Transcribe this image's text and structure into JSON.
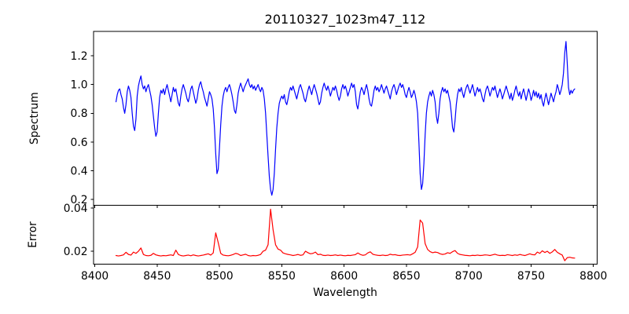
{
  "figure_title": "20110327_1023m47_112",
  "colors": {
    "spectrum_line": "#0000ff",
    "error_line": "#ff0000",
    "axis": "#000000",
    "background": "#ffffff"
  },
  "chart_data": {
    "type": "line",
    "title": "20110327_1023m47_112",
    "xlabel": "Wavelength",
    "grid": false,
    "legend": null,
    "height_ratios": [
      3,
      1
    ],
    "xlim": [
      8399,
      8803
    ],
    "xticks": [
      8400,
      8450,
      8500,
      8550,
      8600,
      8650,
      8700,
      8750,
      8800
    ],
    "xtick_labels": [
      "8400",
      "8450",
      "8500",
      "8550",
      "8600",
      "8650",
      "8700",
      "8750",
      "8800"
    ],
    "panels": [
      {
        "name": "spectrum",
        "ylabel": "Spectrum",
        "color": "#0000ff",
        "ylim": [
          0.16,
          1.37
        ],
        "yticks": [
          0.2,
          0.4,
          0.6,
          0.8,
          1.0,
          1.2
        ],
        "ytick_labels": [
          "0.2",
          "0.4",
          "0.6",
          "0.8",
          "1.0",
          "1.2"
        ],
        "x_start": 8417,
        "x_step": 1,
        "values": [
          0.88,
          0.93,
          0.96,
          0.97,
          0.93,
          0.9,
          0.84,
          0.8,
          0.86,
          0.95,
          0.99,
          0.96,
          0.91,
          0.8,
          0.71,
          0.68,
          0.76,
          0.92,
          0.99,
          1.03,
          1.06,
          1.0,
          0.97,
          0.99,
          0.95,
          0.98,
          1.0,
          0.96,
          0.92,
          0.86,
          0.78,
          0.7,
          0.64,
          0.67,
          0.8,
          0.91,
          0.96,
          0.94,
          0.97,
          0.93,
          0.97,
          1.0,
          0.96,
          0.92,
          0.88,
          0.93,
          0.98,
          0.95,
          0.97,
          0.92,
          0.87,
          0.85,
          0.92,
          0.97,
          1.0,
          0.97,
          0.94,
          0.9,
          0.88,
          0.92,
          0.97,
          0.99,
          0.95,
          0.91,
          0.87,
          0.9,
          0.96,
          1.0,
          1.02,
          0.98,
          0.95,
          0.91,
          0.88,
          0.85,
          0.9,
          0.95,
          0.93,
          0.9,
          0.83,
          0.7,
          0.52,
          0.38,
          0.41,
          0.56,
          0.72,
          0.85,
          0.92,
          0.96,
          0.98,
          0.95,
          0.98,
          1.0,
          0.97,
          0.93,
          0.88,
          0.82,
          0.8,
          0.86,
          0.94,
          0.98,
          1.01,
          0.98,
          0.95,
          0.98,
          1.0,
          1.02,
          1.04,
          1.0,
          0.98,
          1.0,
          0.97,
          0.99,
          0.96,
          0.98,
          1.0,
          0.97,
          0.95,
          0.98,
          0.96,
          0.9,
          0.8,
          0.65,
          0.5,
          0.36,
          0.27,
          0.23,
          0.27,
          0.38,
          0.55,
          0.7,
          0.8,
          0.87,
          0.9,
          0.92,
          0.9,
          0.93,
          0.88,
          0.86,
          0.9,
          0.95,
          0.98,
          0.96,
          0.99,
          0.96,
          0.93,
          0.9,
          0.94,
          0.98,
          1.0,
          0.97,
          0.94,
          0.9,
          0.88,
          0.92,
          0.96,
          0.99,
          0.96,
          0.93,
          0.97,
          1.0,
          0.97,
          0.94,
          0.9,
          0.86,
          0.88,
          0.94,
          0.98,
          1.01,
          0.98,
          0.96,
          0.99,
          0.96,
          0.92,
          0.95,
          0.98,
          0.96,
          0.99,
          0.96,
          0.92,
          0.89,
          0.92,
          0.97,
          1.0,
          0.97,
          0.99,
          0.96,
          0.92,
          0.95,
          0.98,
          1.01,
          0.98,
          1.0,
          0.95,
          0.86,
          0.83,
          0.89,
          0.95,
          0.98,
          0.96,
          0.93,
          0.97,
          1.0,
          0.96,
          0.9,
          0.86,
          0.85,
          0.9,
          0.96,
          0.99,
          0.96,
          0.98,
          0.95,
          0.97,
          1.0,
          0.97,
          0.94,
          0.97,
          0.99,
          0.96,
          0.93,
          0.9,
          0.95,
          0.98,
          1.0,
          0.97,
          0.93,
          0.96,
          0.99,
          1.01,
          0.98,
          1.0,
          0.97,
          0.93,
          0.91,
          0.95,
          0.98,
          0.95,
          0.91,
          0.93,
          0.96,
          0.93,
          0.88,
          0.8,
          0.6,
          0.38,
          0.27,
          0.31,
          0.45,
          0.65,
          0.8,
          0.88,
          0.92,
          0.95,
          0.92,
          0.96,
          0.93,
          0.88,
          0.78,
          0.73,
          0.8,
          0.9,
          0.95,
          0.98,
          0.95,
          0.97,
          0.94,
          0.96,
          0.92,
          0.88,
          0.8,
          0.7,
          0.67,
          0.75,
          0.86,
          0.93,
          0.97,
          0.95,
          0.98,
          0.94,
          0.91,
          0.95,
          0.98,
          1.0,
          0.97,
          0.94,
          0.97,
          1.0,
          0.96,
          0.92,
          0.95,
          0.98,
          0.95,
          0.97,
          0.94,
          0.9,
          0.88,
          0.93,
          0.97,
          0.99,
          0.96,
          0.92,
          0.95,
          0.98,
          0.96,
          0.99,
          0.95,
          0.91,
          0.94,
          0.97,
          0.94,
          0.9,
          0.93,
          0.96,
          0.99,
          0.96,
          0.93,
          0.9,
          0.94,
          0.89,
          0.92,
          0.96,
          0.99,
          0.95,
          0.92,
          0.95,
          0.9,
          0.94,
          0.97,
          0.93,
          0.89,
          0.93,
          0.97,
          0.94,
          0.89,
          0.92,
          0.96,
          0.92,
          0.95,
          0.91,
          0.94,
          0.9,
          0.93,
          0.88,
          0.85,
          0.9,
          0.94,
          0.9,
          0.86,
          0.9,
          0.94,
          0.91,
          0.88,
          0.92,
          0.95,
          1.0,
          0.97,
          0.93,
          0.96,
          1.0,
          1.08,
          1.22,
          1.3,
          1.15,
          0.98,
          0.93,
          0.96,
          0.94,
          0.96,
          0.97
        ]
      },
      {
        "name": "error",
        "ylabel": "Error",
        "color": "#ff0000",
        "ylim": [
          0.014,
          0.0413
        ],
        "yticks": [
          0.02,
          0.04
        ],
        "ytick_labels": [
          "0.02",
          "0.04"
        ],
        "x_start": 8417,
        "x_step": 2,
        "values": [
          0.018,
          0.0178,
          0.018,
          0.0183,
          0.0195,
          0.0185,
          0.0182,
          0.0196,
          0.019,
          0.02,
          0.0215,
          0.0185,
          0.018,
          0.0179,
          0.0181,
          0.019,
          0.0183,
          0.018,
          0.0178,
          0.018,
          0.0179,
          0.0181,
          0.0183,
          0.018,
          0.0205,
          0.0185,
          0.018,
          0.0178,
          0.018,
          0.0182,
          0.0179,
          0.0183,
          0.018,
          0.0178,
          0.018,
          0.0182,
          0.0185,
          0.0188,
          0.0182,
          0.0192,
          0.0285,
          0.024,
          0.019,
          0.0182,
          0.018,
          0.0179,
          0.0181,
          0.0185,
          0.019,
          0.0187,
          0.018,
          0.0183,
          0.0186,
          0.018,
          0.0178,
          0.018,
          0.0179,
          0.0181,
          0.0185,
          0.02,
          0.0205,
          0.023,
          0.0395,
          0.03,
          0.023,
          0.021,
          0.0205,
          0.0192,
          0.0188,
          0.0185,
          0.0183,
          0.018,
          0.0182,
          0.0185,
          0.0181,
          0.0183,
          0.02,
          0.0193,
          0.0188,
          0.019,
          0.0196,
          0.0184,
          0.0186,
          0.0181,
          0.018,
          0.0182,
          0.018,
          0.0181,
          0.0183,
          0.018,
          0.0182,
          0.018,
          0.0179,
          0.0181,
          0.018,
          0.0182,
          0.0184,
          0.0192,
          0.0185,
          0.0181,
          0.0183,
          0.0192,
          0.0197,
          0.0186,
          0.0183,
          0.0181,
          0.018,
          0.0182,
          0.018,
          0.0181,
          0.0186,
          0.0183,
          0.0184,
          0.0181,
          0.018,
          0.0182,
          0.0183,
          0.0184,
          0.0182,
          0.0188,
          0.0195,
          0.022,
          0.0345,
          0.033,
          0.0235,
          0.0208,
          0.0198,
          0.0193,
          0.0196,
          0.0194,
          0.0188,
          0.0185,
          0.0187,
          0.0193,
          0.019,
          0.0198,
          0.0203,
          0.019,
          0.0185,
          0.0183,
          0.0181,
          0.018,
          0.0179,
          0.0181,
          0.018,
          0.0182,
          0.018,
          0.0181,
          0.0183,
          0.0182,
          0.018,
          0.0183,
          0.0186,
          0.0182,
          0.018,
          0.0181,
          0.018,
          0.0184,
          0.0182,
          0.018,
          0.0183,
          0.0181,
          0.0185,
          0.0182,
          0.018,
          0.0184,
          0.0188,
          0.0184,
          0.0183,
          0.0196,
          0.019,
          0.0202,
          0.0194,
          0.02,
          0.019,
          0.0197,
          0.0208,
          0.0195,
          0.0188,
          0.0182,
          0.0156,
          0.017,
          0.0172,
          0.0169,
          0.0168
        ]
      }
    ]
  }
}
